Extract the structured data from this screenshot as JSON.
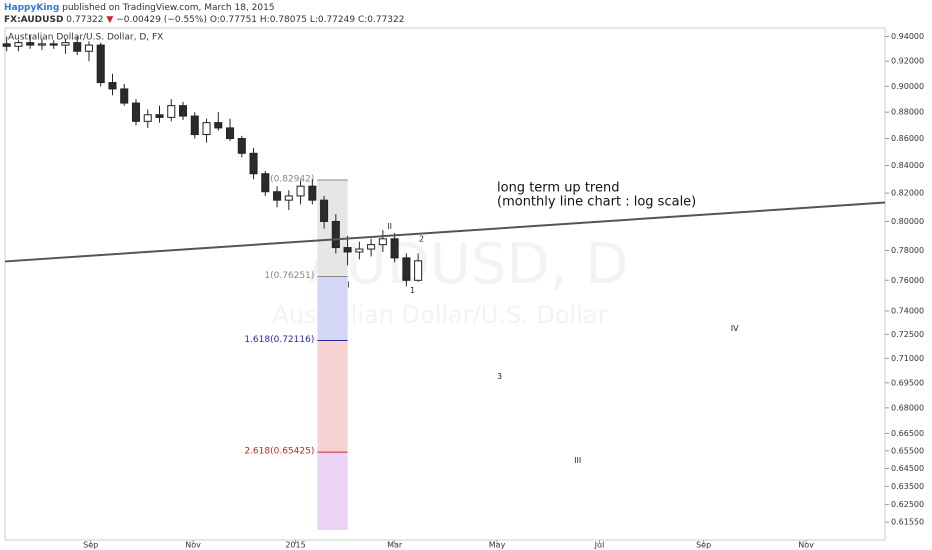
{
  "header": {
    "author": "HappyKing",
    "published": "published on TradingView.com, March 18, 2015",
    "symbol": "FX:AUDUSD",
    "last": "0.77322",
    "arrow": "▼",
    "change": "−0.00429 (−0.55%)",
    "open": "O:0.77751",
    "high": "H:0.78075",
    "low": "L:0.77249",
    "close": "C:0.77322"
  },
  "chart_data": {
    "type": "candlestick",
    "title": "Australian Dollar/U.S. Dollar, D, FX",
    "watermark": "AUDUSD, D",
    "watermark_sub": "Australian Dollar/U.S. Dollar",
    "up_color": "#ffffff",
    "down_color": "#2b2b2b",
    "log_scale": true,
    "x": [
      -172,
      -165,
      -158,
      -151,
      -144,
      -137,
      -130,
      -123,
      -116,
      -109,
      -102,
      -95,
      -88,
      -81,
      -74,
      -67,
      -60,
      -53,
      -46,
      -39,
      -32,
      -25,
      -18,
      -11,
      -4,
      3,
      10,
      17,
      24,
      31,
      38,
      45,
      52,
      59,
      66,
      73
    ],
    "open": [
      0.934,
      0.932,
      0.935,
      0.933,
      0.934,
      0.933,
      0.935,
      0.928,
      0.933,
      0.903,
      0.898,
      0.887,
      0.873,
      0.878,
      0.876,
      0.885,
      0.877,
      0.863,
      0.872,
      0.868,
      0.86,
      0.849,
      0.834,
      0.821,
      0.815,
      0.818,
      0.825,
      0.815,
      0.8,
      0.782,
      0.779,
      0.781,
      0.784,
      0.788,
      0.775,
      0.76
    ],
    "high": [
      0.94,
      0.937,
      0.941,
      0.938,
      0.937,
      0.938,
      0.94,
      0.936,
      0.935,
      0.91,
      0.902,
      0.89,
      0.882,
      0.885,
      0.89,
      0.888,
      0.88,
      0.875,
      0.88,
      0.875,
      0.862,
      0.853,
      0.836,
      0.825,
      0.822,
      0.829,
      0.83,
      0.818,
      0.805,
      0.79,
      0.786,
      0.788,
      0.794,
      0.792,
      0.778,
      0.778
    ],
    "low": [
      0.928,
      0.928,
      0.93,
      0.929,
      0.93,
      0.926,
      0.925,
      0.92,
      0.9,
      0.893,
      0.885,
      0.87,
      0.868,
      0.872,
      0.873,
      0.874,
      0.86,
      0.857,
      0.866,
      0.858,
      0.846,
      0.83,
      0.818,
      0.81,
      0.808,
      0.812,
      0.812,
      0.795,
      0.778,
      0.77,
      0.774,
      0.776,
      0.779,
      0.772,
      0.756,
      0.759
    ],
    "close": [
      0.932,
      0.935,
      0.933,
      0.934,
      0.933,
      0.935,
      0.928,
      0.933,
      0.903,
      0.898,
      0.887,
      0.873,
      0.878,
      0.876,
      0.885,
      0.877,
      0.863,
      0.872,
      0.868,
      0.86,
      0.849,
      0.834,
      0.821,
      0.815,
      0.818,
      0.825,
      0.815,
      0.8,
      0.782,
      0.779,
      0.781,
      0.784,
      0.788,
      0.775,
      0.76,
      0.773
    ],
    "xlim": [
      -173,
      351
    ],
    "xticks": [
      {
        "value": -122,
        "label": "Sep"
      },
      {
        "value": -61,
        "label": "Nov"
      },
      {
        "value": 0,
        "label": "2015"
      },
      {
        "value": 59,
        "label": "Mar"
      },
      {
        "value": 120,
        "label": "May"
      },
      {
        "value": 181,
        "label": "Jul"
      },
      {
        "value": 243,
        "label": "Sep"
      },
      {
        "value": 304,
        "label": "Nov"
      }
    ],
    "ylim": [
      0.606,
      0.947
    ],
    "yticks": [
      {
        "value": 0.94,
        "label": "0.94000"
      },
      {
        "value": 0.92,
        "label": "0.92000"
      },
      {
        "value": 0.9,
        "label": "0.90000"
      },
      {
        "value": 0.88,
        "label": "0.88000"
      },
      {
        "value": 0.86,
        "label": "0.86000"
      },
      {
        "value": 0.84,
        "label": "0.84000"
      },
      {
        "value": 0.82,
        "label": "0.82000"
      },
      {
        "value": 0.8,
        "label": "0.80000"
      },
      {
        "value": 0.78,
        "label": "0.78000"
      },
      {
        "value": 0.76,
        "label": "0.76000"
      },
      {
        "value": 0.74,
        "label": "0.74000"
      },
      {
        "value": 0.725,
        "label": "0.72500"
      },
      {
        "value": 0.71,
        "label": "0.71000"
      },
      {
        "value": 0.695,
        "label": "0.69500"
      },
      {
        "value": 0.68,
        "label": "0.68000"
      },
      {
        "value": 0.665,
        "label": "0.66500"
      },
      {
        "value": 0.655,
        "label": "0.65500"
      },
      {
        "value": 0.645,
        "label": "0.64500"
      },
      {
        "value": 0.635,
        "label": "0.63500"
      },
      {
        "value": 0.625,
        "label": "0.62500"
      },
      {
        "value": 0.6155,
        "label": "0.61550"
      }
    ],
    "trend_line": {
      "x": [
        -173,
        351
      ],
      "y": [
        0.7726,
        0.8133
      ],
      "color": "#555555",
      "text": [
        "long term up trend",
        "(monthly line chart : log scale)"
      ]
    },
    "fib": {
      "x": [
        13,
        31
      ],
      "levels": [
        {
          "value": 0.82942,
          "label": "1(0.82942)",
          "color": "#888888",
          "fill": "#e6e6e6"
        },
        {
          "value": 0.76251,
          "label": "1(0.76251)",
          "color": "#888888",
          "fill": "#d3d6f5"
        },
        {
          "value": 0.72116,
          "label": "1.618(0.72116)",
          "color": "#2b2b9a",
          "fill": "#f7d2d2"
        },
        {
          "value": 0.65425,
          "label": "2.618(0.65425)",
          "color": "#c0282e",
          "fill": "#ebd3f5"
        }
      ]
    },
    "annotations": [
      {
        "x": 31.6,
        "y": 0.757,
        "text": "I"
      },
      {
        "x": 56,
        "y": 0.7965,
        "text": "II"
      },
      {
        "x": 69.7,
        "y": 0.7533,
        "text": "1"
      },
      {
        "x": 75,
        "y": 0.788,
        "text": "2"
      },
      {
        "x": 121.5,
        "y": 0.6989,
        "text": "3"
      },
      {
        "x": 168,
        "y": 0.6494,
        "text": "III"
      },
      {
        "x": 261.5,
        "y": 0.7287,
        "text": "IV"
      }
    ]
  }
}
